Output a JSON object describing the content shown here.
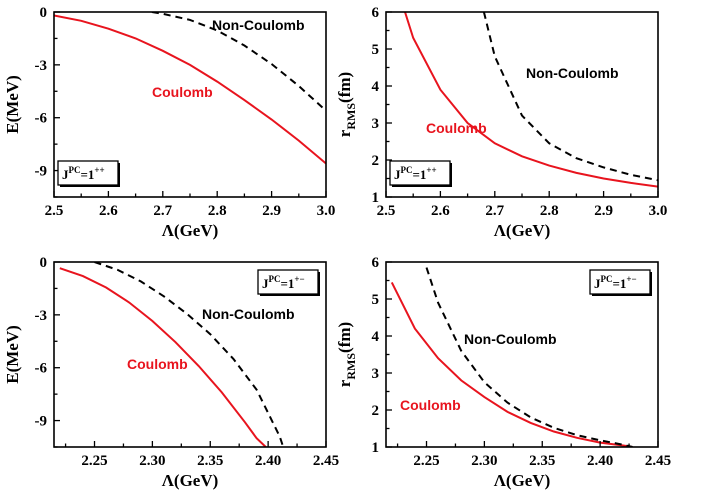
{
  "colors": {
    "coulomb": "#e8141e",
    "non_coulomb": "#000000",
    "axis": "#000000"
  },
  "chart_data": [
    {
      "type": "line",
      "xlabel": "Λ(GeV)",
      "ylabel": "E(MeV)",
      "xlim": [
        2.5,
        3.0
      ],
      "ylim": [
        -10.5,
        0
      ],
      "xticks": [
        "2.5",
        "2.6",
        "2.7",
        "2.8",
        "2.9",
        "3.0"
      ],
      "yticks": [
        "0",
        "-3",
        "-6",
        "-9"
      ],
      "badge": {
        "base": "J",
        "sup": "PC",
        "mid": "=1",
        "sup2": "++"
      },
      "series": [
        {
          "name": "Coulomb",
          "style": "solid",
          "color": "#e8141e",
          "x": [
            2.5,
            2.55,
            2.6,
            2.65,
            2.7,
            2.75,
            2.8,
            2.85,
            2.9,
            2.95,
            3.0
          ],
          "y": [
            -0.2,
            -0.5,
            -0.95,
            -1.5,
            -2.2,
            -3.0,
            -3.95,
            -5.0,
            -6.1,
            -7.3,
            -8.6
          ]
        },
        {
          "name": "Non-Coulomb",
          "style": "dashed",
          "color": "#000000",
          "x": [
            2.68,
            2.7,
            2.75,
            2.8,
            2.85,
            2.9,
            2.95,
            3.0
          ],
          "y": [
            0,
            -0.1,
            -0.45,
            -1.05,
            -1.9,
            -2.95,
            -4.2,
            -5.6
          ]
        }
      ],
      "annotations": [
        {
          "text": "Non-Coulomb",
          "series": "Non-Coulomb"
        },
        {
          "text": "Coulomb",
          "series": "Coulomb"
        }
      ]
    },
    {
      "type": "line",
      "xlabel": "Λ(GeV)",
      "ylabel": "rRMS(fm)",
      "ylabel_main": "r",
      "ylabel_sub": "RMS",
      "ylabel_tail": "(fm)",
      "xlim": [
        2.5,
        3.0
      ],
      "ylim": [
        1,
        6
      ],
      "xticks": [
        "2.5",
        "2.6",
        "2.7",
        "2.8",
        "2.9",
        "3.0"
      ],
      "yticks": [
        "1",
        "2",
        "3",
        "4",
        "5",
        "6"
      ],
      "badge": {
        "base": "J",
        "sup": "PC",
        "mid": "=1",
        "sup2": "++"
      },
      "series": [
        {
          "name": "Coulomb",
          "style": "solid",
          "color": "#e8141e",
          "x": [
            2.535,
            2.55,
            2.6,
            2.65,
            2.7,
            2.75,
            2.8,
            2.85,
            2.9,
            2.95,
            3.0
          ],
          "y": [
            6.0,
            5.3,
            3.9,
            3.0,
            2.45,
            2.1,
            1.85,
            1.65,
            1.5,
            1.38,
            1.28
          ]
        },
        {
          "name": "Non-Coulomb",
          "style": "dashed",
          "color": "#000000",
          "x": [
            2.68,
            2.7,
            2.75,
            2.8,
            2.85,
            2.9,
            2.95,
            3.0
          ],
          "y": [
            6.0,
            4.8,
            3.2,
            2.45,
            2.05,
            1.8,
            1.6,
            1.45
          ]
        }
      ],
      "annotations": [
        {
          "text": "Non-Coulomb",
          "series": "Non-Coulomb"
        },
        {
          "text": "Coulomb",
          "series": "Coulomb"
        }
      ]
    },
    {
      "type": "line",
      "xlabel": "Λ(GeV)",
      "ylabel": "E(MeV)",
      "xlim": [
        2.215,
        2.45
      ],
      "ylim": [
        -10.5,
        0
      ],
      "xticks": [
        "2.25",
        "2.30",
        "2.35",
        "2.40",
        "2.45"
      ],
      "xtick_values": [
        2.25,
        2.3,
        2.35,
        2.4,
        2.45
      ],
      "yticks": [
        "0",
        "-3",
        "-6",
        "-9"
      ],
      "badge": {
        "base": "J",
        "sup": "PC",
        "mid": "=1",
        "sup2": "+−"
      },
      "series": [
        {
          "name": "Coulomb",
          "style": "solid",
          "color": "#e8141e",
          "x": [
            2.22,
            2.24,
            2.26,
            2.28,
            2.3,
            2.32,
            2.34,
            2.36,
            2.38,
            2.39,
            2.398
          ],
          "y": [
            -0.35,
            -0.8,
            -1.45,
            -2.3,
            -3.35,
            -4.55,
            -5.9,
            -7.4,
            -9.1,
            -10.0,
            -10.5
          ]
        },
        {
          "name": "Non-Coulomb",
          "style": "dashed",
          "color": "#000000",
          "x": [
            2.25,
            2.27,
            2.29,
            2.31,
            2.33,
            2.35,
            2.37,
            2.39,
            2.41,
            2.413
          ],
          "y": [
            0,
            -0.45,
            -1.1,
            -1.95,
            -2.95,
            -4.1,
            -5.5,
            -7.25,
            -9.9,
            -10.5
          ]
        }
      ],
      "annotations": [
        {
          "text": "Non-Coulomb",
          "series": "Non-Coulomb"
        },
        {
          "text": "Coulomb",
          "series": "Coulomb"
        }
      ]
    },
    {
      "type": "line",
      "xlabel": "Λ(GeV)",
      "ylabel": "rRMS(fm)",
      "ylabel_main": "r",
      "ylabel_sub": "RMS",
      "ylabel_tail": "(fm)",
      "xlim": [
        2.215,
        2.45
      ],
      "ylim": [
        1,
        6
      ],
      "xticks": [
        "2.25",
        "2.30",
        "2.35",
        "2.40",
        "2.45"
      ],
      "xtick_values": [
        2.25,
        2.3,
        2.35,
        2.4,
        2.45
      ],
      "yticks": [
        "1",
        "2",
        "3",
        "4",
        "5",
        "6"
      ],
      "badge": {
        "base": "J",
        "sup": "PC",
        "mid": "=1",
        "sup2": "+−"
      },
      "series": [
        {
          "name": "Coulomb",
          "style": "solid",
          "color": "#e8141e",
          "x": [
            2.22,
            2.24,
            2.26,
            2.28,
            2.3,
            2.32,
            2.34,
            2.36,
            2.38,
            2.4,
            2.42,
            2.428
          ],
          "y": [
            5.45,
            4.2,
            3.4,
            2.8,
            2.35,
            1.95,
            1.65,
            1.42,
            1.25,
            1.12,
            1.04,
            1.0
          ]
        },
        {
          "name": "Non-Coulomb",
          "style": "dashed",
          "color": "#000000",
          "x": [
            2.25,
            2.26,
            2.28,
            2.3,
            2.32,
            2.34,
            2.36,
            2.38,
            2.4,
            2.42,
            2.428
          ],
          "y": [
            5.85,
            4.9,
            3.6,
            2.75,
            2.2,
            1.8,
            1.52,
            1.32,
            1.18,
            1.06,
            1.0
          ]
        }
      ],
      "annotations": [
        {
          "text": "Non-Coulomb",
          "series": "Non-Coulomb"
        },
        {
          "text": "Coulomb",
          "series": "Coulomb"
        }
      ]
    }
  ]
}
